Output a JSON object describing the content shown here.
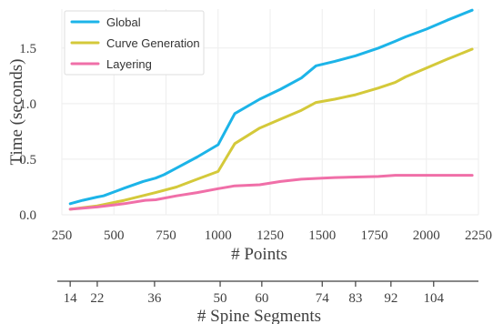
{
  "chart_data": {
    "type": "line",
    "xlabel": "# Points",
    "ylabel": "Time (seconds)",
    "xlim": [
      250,
      2250
    ],
    "ylim": [
      0.0,
      1.85
    ],
    "xticks": [
      250,
      500,
      750,
      1000,
      1250,
      1500,
      1750,
      2000,
      2250
    ],
    "yticks": [
      0.0,
      0.5,
      1.0,
      1.5
    ],
    "ytick_labels": [
      "0.0",
      "0.5",
      "1.0",
      "1.5"
    ],
    "grid": true,
    "legend_position": "top-left",
    "secondary_axis": {
      "label": "# Spine Segments",
      "ticks": [
        {
          "label": "14",
          "x": 290
        },
        {
          "label": "22",
          "x": 420
        },
        {
          "label": "36",
          "x": 695
        },
        {
          "label": "50",
          "x": 1010
        },
        {
          "label": "60",
          "x": 1210
        },
        {
          "label": "74",
          "x": 1500
        },
        {
          "label": "83",
          "x": 1660
        },
        {
          "label": "92",
          "x": 1830
        },
        {
          "label": "104",
          "x": 2035
        }
      ]
    },
    "series": [
      {
        "name": "Global",
        "color": "#1CB4E8",
        "x": [
          290,
          350,
          420,
          450,
          550,
          640,
          700,
          740,
          800,
          900,
          1000,
          1080,
          1200,
          1300,
          1400,
          1470,
          1560,
          1660,
          1770,
          1850,
          1900,
          2000,
          2100,
          2220
        ],
        "y": [
          0.1,
          0.13,
          0.16,
          0.17,
          0.24,
          0.3,
          0.33,
          0.36,
          0.42,
          0.52,
          0.63,
          0.91,
          1.04,
          1.13,
          1.23,
          1.34,
          1.38,
          1.43,
          1.5,
          1.56,
          1.6,
          1.67,
          1.75,
          1.84
        ]
      },
      {
        "name": "Curve Generation",
        "color": "#D4C93A",
        "x": [
          290,
          420,
          550,
          700,
          800,
          900,
          1000,
          1080,
          1200,
          1300,
          1400,
          1470,
          1560,
          1660,
          1770,
          1850,
          1900,
          2000,
          2100,
          2220
        ],
        "y": [
          0.05,
          0.08,
          0.13,
          0.2,
          0.25,
          0.32,
          0.39,
          0.64,
          0.78,
          0.86,
          0.94,
          1.01,
          1.04,
          1.08,
          1.14,
          1.19,
          1.24,
          1.32,
          1.4,
          1.49
        ]
      },
      {
        "name": "Layering",
        "color": "#F06FA8",
        "x": [
          290,
          420,
          550,
          650,
          700,
          800,
          900,
          1000,
          1080,
          1200,
          1300,
          1400,
          1500,
          1560,
          1660,
          1770,
          1850,
          1900,
          2000,
          2100,
          2220
        ],
        "y": [
          0.05,
          0.07,
          0.1,
          0.13,
          0.135,
          0.17,
          0.2,
          0.235,
          0.26,
          0.27,
          0.3,
          0.32,
          0.33,
          0.335,
          0.34,
          0.345,
          0.355,
          0.355,
          0.355,
          0.355,
          0.355
        ]
      }
    ]
  }
}
